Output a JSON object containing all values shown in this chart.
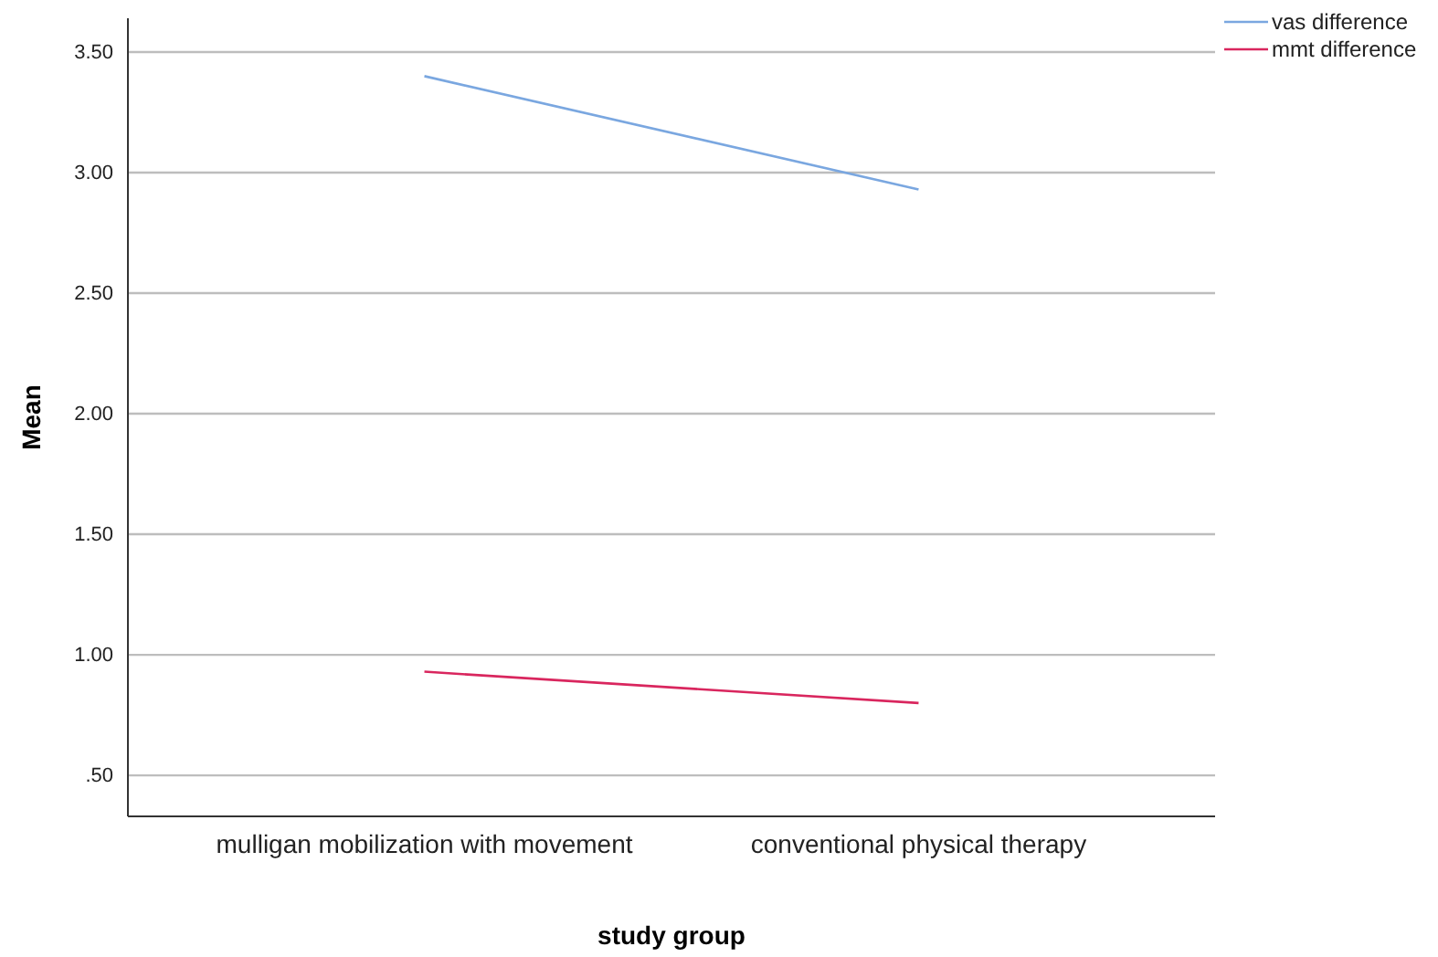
{
  "chart_data": {
    "type": "line",
    "xlabel": "study group",
    "ylabel": "Mean",
    "categories": [
      "mulligan mobilization with movement",
      "conventional physical therapy"
    ],
    "series": [
      {
        "name": "vas difference",
        "color": "#7aa7e0",
        "values": [
          3.4,
          2.93
        ]
      },
      {
        "name": "mmt difference",
        "color": "#d9265e",
        "values": [
          0.93,
          0.8
        ]
      }
    ],
    "ylim": [
      0.33,
      3.64
    ],
    "yticks": [
      {
        "value": 0.5,
        "label": ".50"
      },
      {
        "value": 1,
        "label": "1.00"
      },
      {
        "value": 1.5,
        "label": "1.50"
      },
      {
        "value": 2,
        "label": "2.00"
      },
      {
        "value": 2.5,
        "label": "2.50"
      },
      {
        "value": 3,
        "label": "3.00"
      },
      {
        "value": 3.5,
        "label": "3.50"
      }
    ],
    "grid": "y",
    "legend": "top right",
    "marker": "none",
    "line_style": "solid"
  }
}
